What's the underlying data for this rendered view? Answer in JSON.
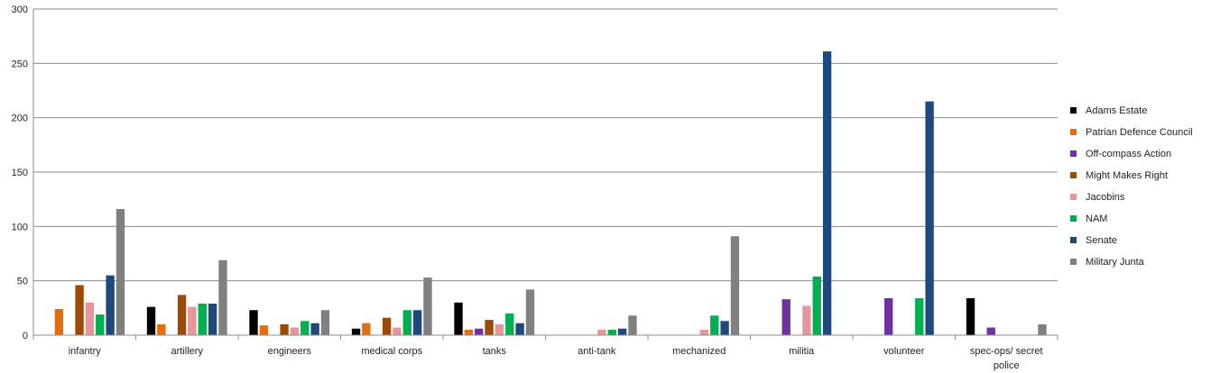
{
  "chart_data": {
    "type": "bar",
    "title": "",
    "xlabel": "",
    "ylabel": "",
    "ylim": [
      0,
      300
    ],
    "yticks": [
      "0",
      "50",
      "100",
      "150",
      "200",
      "250",
      "300"
    ],
    "grid": true,
    "legend_position": "right",
    "categories": [
      "infantry",
      "artillery",
      "engineers",
      "medical corps",
      "tanks",
      "anti-tank",
      "mechanized",
      "militia",
      "volunteer",
      "spec-ops/ secret police"
    ],
    "series": [
      {
        "name": "Adams Estate",
        "color": "#000000",
        "values": [
          0,
          26,
          23,
          6,
          30,
          0,
          0,
          0,
          0,
          34
        ]
      },
      {
        "name": "Patrian Defence Council",
        "color": "#E46C0A",
        "values": [
          24,
          10,
          9,
          11,
          5,
          0,
          0,
          0,
          0,
          0
        ]
      },
      {
        "name": "Off-compass Action",
        "color": "#7030A0",
        "values": [
          0,
          0,
          0,
          0,
          6,
          0,
          0,
          33,
          34,
          7
        ]
      },
      {
        "name": "Might Makes Right",
        "color": "#9C4A08",
        "values": [
          46,
          37,
          10,
          16,
          14,
          0,
          0,
          0,
          0,
          0
        ]
      },
      {
        "name": "Jacobins",
        "color": "#E6959A",
        "values": [
          30,
          26,
          7,
          7,
          10,
          5,
          5,
          27,
          0,
          0
        ]
      },
      {
        "name": "NAM",
        "color": "#00B050",
        "values": [
          19,
          29,
          13,
          23,
          20,
          5,
          18,
          54,
          34,
          0
        ]
      },
      {
        "name": "Senate",
        "color": "#1F497D",
        "values": [
          55,
          29,
          11,
          23,
          11,
          6,
          13,
          261,
          215,
          0
        ]
      },
      {
        "name": "Military Junta",
        "color": "#808080",
        "values": [
          116,
          69,
          23,
          53,
          42,
          18,
          91,
          0,
          0,
          10
        ]
      }
    ]
  }
}
